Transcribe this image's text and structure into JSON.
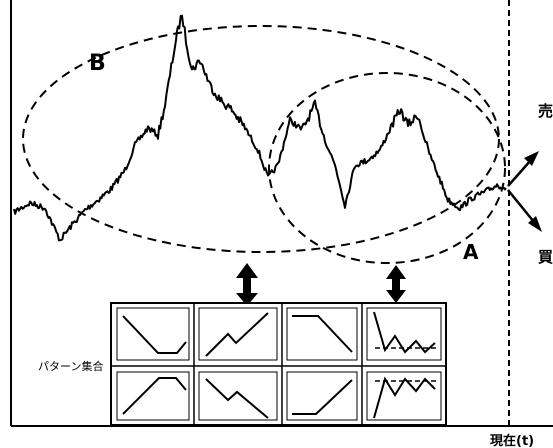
{
  "labels": {
    "region_b": "B",
    "region_a": "A",
    "sell": "売",
    "buy": "買",
    "pattern_set": "パターン集合",
    "now": "現在(t)"
  },
  "colors": {
    "ink": "#000000",
    "panel_fill": "#ffffff",
    "panel_border": "#000000",
    "background": "#ffffff"
  }
}
